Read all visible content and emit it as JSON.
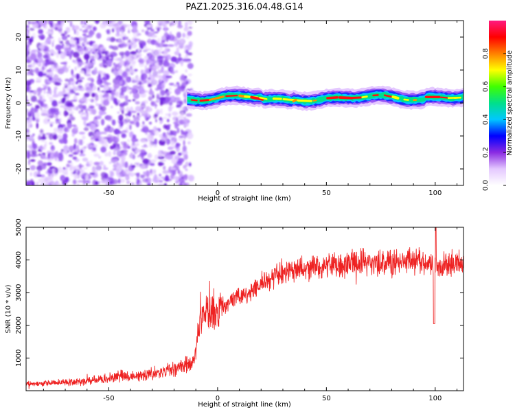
{
  "title": "PAZ1.2025.316.04.48.G14",
  "colors": {
    "snr_line": "#ee2222",
    "scatter": "#8a3df0",
    "colormap": [
      "#ffffff",
      "#e4c8ff",
      "#8a2be2",
      "#0000ff",
      "#00c8ff",
      "#00e08a",
      "#40ff00",
      "#ffff00",
      "#ff8000",
      "#ff0000",
      "#ff1a80"
    ]
  },
  "chart_data": [
    {
      "type": "heatmap",
      "name": "spectrogram",
      "title": "PAZ1.2025.316.04.48.G14",
      "xlabel": "Height of straight line (km)",
      "ylabel": "Frequency (Hz)",
      "xlim": [
        -88,
        113
      ],
      "ylim": [
        -25,
        25
      ],
      "xticks": [
        -50,
        0,
        50,
        100
      ],
      "xtick_labels": [
        "-50",
        "0",
        "50",
        "100"
      ],
      "yticks": [
        -20,
        -10,
        0,
        10,
        20
      ],
      "ytick_labels": [
        "-20",
        "-10",
        "0",
        "10",
        "20"
      ],
      "noise_region_x": [
        -88,
        -15
      ],
      "signal_frequency_hz": 1.5,
      "colorbar": {
        "label": "Normalized spectral amplitude",
        "range": [
          0,
          1
        ],
        "ticks": [
          0.0,
          0.2,
          0.4,
          0.6,
          0.8
        ],
        "tick_labels": [
          "0.0",
          "0.2",
          "0.4",
          "0.6",
          "0.8"
        ]
      }
    },
    {
      "type": "line",
      "name": "snr",
      "xlabel": "Height of straight line (km)",
      "ylabel": "SNR (10 * v/v)",
      "xlim": [
        -88,
        113
      ],
      "ylim": [
        0,
        5000
      ],
      "xticks": [
        -50,
        0,
        50,
        100
      ],
      "xtick_labels": [
        "-50",
        "0",
        "50",
        "100"
      ],
      "yticks": [
        1000,
        2000,
        3000,
        4000,
        5000
      ],
      "ytick_labels": [
        "1000",
        "2000",
        "3000",
        "4000",
        "5000"
      ],
      "series": [
        {
          "name": "SNR",
          "x": [
            -88,
            -80,
            -70,
            -60,
            -50,
            -45,
            -40,
            -30,
            -20,
            -15,
            -12,
            -10,
            -8,
            -5,
            0,
            5,
            10,
            15,
            20,
            25,
            30,
            35,
            40,
            50,
            60,
            70,
            80,
            90,
            95,
            100,
            105,
            113
          ],
          "y": [
            200,
            230,
            260,
            300,
            380,
            450,
            420,
            520,
            650,
            750,
            900,
            1150,
            2300,
            2400,
            2500,
            2700,
            2900,
            3050,
            3250,
            3450,
            3600,
            3700,
            3800,
            3850,
            3900,
            3950,
            3900,
            3950,
            3900,
            3800,
            3850,
            3900
          ]
        }
      ]
    }
  ]
}
